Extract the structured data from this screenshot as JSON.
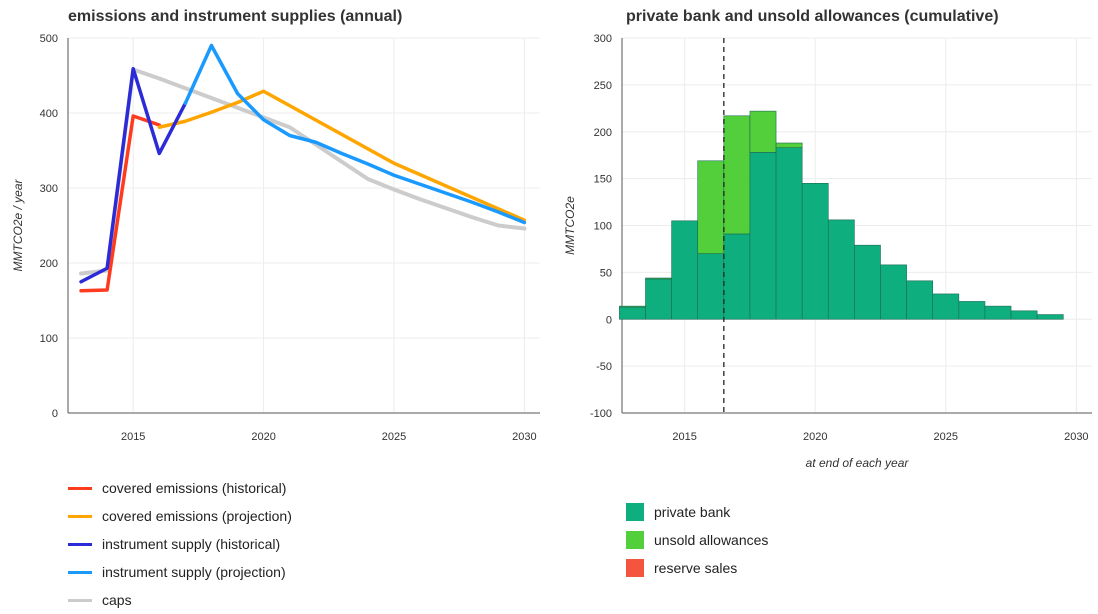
{
  "chart_data": [
    {
      "type": "line",
      "title": "emissions and instrument supplies (annual)",
      "ylabel": "MMTCO2e / year",
      "xlabel": "",
      "xlim": [
        2012.5,
        2030.1
      ],
      "ylim": [
        0,
        500
      ],
      "xticks": [
        2015,
        2020,
        2025,
        2030
      ],
      "yticks": [
        0,
        100,
        200,
        300,
        400,
        500
      ],
      "grid": true,
      "legend_position": "bottom-left",
      "series": [
        {
          "name": "caps",
          "color": "#cccccc",
          "x": [
            2013,
            2014,
            2015,
            2016,
            2017,
            2018,
            2019,
            2020,
            2021,
            2022,
            2023,
            2024,
            2025,
            2026,
            2027,
            2028,
            2029,
            2030
          ],
          "y": [
            186,
            190,
            458,
            446,
            433,
            420,
            407,
            394,
            381,
            358,
            335,
            312,
            298,
            285,
            273,
            261,
            250,
            246
          ]
        },
        {
          "name": "covered emissions (historical)",
          "color": "#ff3b1f",
          "x": [
            2013,
            2014,
            2015,
            2016
          ],
          "y": [
            163,
            164,
            396,
            384
          ]
        },
        {
          "name": "covered emissions (projection)",
          "color": "#ffa500",
          "x": [
            2016,
            2017,
            2018,
            2019,
            2020,
            2025,
            2030
          ],
          "y": [
            381,
            389,
            401,
            414,
            429,
            333,
            257
          ]
        },
        {
          "name": "instrument supply (historical)",
          "color": "#2b2bd8",
          "x": [
            2013,
            2014,
            2015,
            2016,
            2017
          ],
          "y": [
            175,
            193,
            459,
            346,
            413
          ]
        },
        {
          "name": "instrument supply (projection)",
          "color": "#1a9aff",
          "x": [
            2017,
            2018,
            2019,
            2020,
            2021,
            2022,
            2023,
            2024,
            2025,
            2026,
            2027,
            2028,
            2029,
            2030
          ],
          "y": [
            413,
            490,
            426,
            391,
            370,
            361,
            346,
            332,
            317,
            305,
            293,
            281,
            268,
            254
          ]
        }
      ]
    },
    {
      "type": "bar",
      "stacked": true,
      "title": "private bank and unsold allowances (cumulative)",
      "ylabel": "MMTCO2e",
      "xlabel": "at end of each year",
      "xlim": [
        2012.6,
        2030.6
      ],
      "ylim": [
        -100,
        300
      ],
      "xticks": [
        2015,
        2020,
        2025,
        2030
      ],
      "yticks": [
        -100,
        -50,
        0,
        50,
        100,
        150,
        200,
        250,
        300
      ],
      "grid": true,
      "marker_line_x": 2016.5,
      "legend_position": "bottom-left",
      "categories": [
        2013,
        2014,
        2015,
        2016,
        2017,
        2018,
        2019,
        2020,
        2021,
        2022,
        2023,
        2024,
        2025,
        2026,
        2027,
        2028,
        2029
      ],
      "series": [
        {
          "name": "private bank",
          "color": "#0fae7e",
          "values": [
            13,
            43,
            105,
            70,
            91,
            178,
            183,
            145,
            106,
            79,
            58,
            41,
            27,
            19,
            14,
            9,
            5
          ]
        },
        {
          "name": "unsold allowances",
          "color": "#52cf3a",
          "values": [
            1,
            1,
            0,
            99,
            126,
            44,
            5,
            0,
            0,
            0,
            0,
            0,
            0,
            0,
            0,
            0,
            0
          ]
        },
        {
          "name": "reserve sales",
          "color": "#f5543e",
          "values": [
            0,
            0,
            0,
            0,
            0,
            0,
            0,
            0,
            0,
            0,
            0,
            0,
            0,
            0,
            0,
            0,
            0
          ]
        }
      ]
    }
  ]
}
